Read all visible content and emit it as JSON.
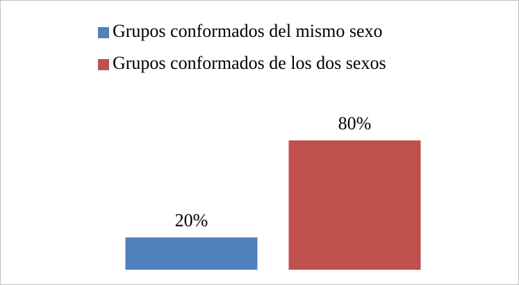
{
  "chart_data": {
    "type": "bar",
    "categories": [
      null
    ],
    "series": [
      {
        "name": "Grupos conformados del mismo sexo",
        "color": "#4f81bd",
        "values": [
          20
        ],
        "value_labels": [
          "20%"
        ]
      },
      {
        "name": "Grupos conformados de los dos sexos",
        "color": "#c0504d",
        "values": [
          80
        ],
        "value_labels": [
          "80%"
        ]
      }
    ]
  }
}
